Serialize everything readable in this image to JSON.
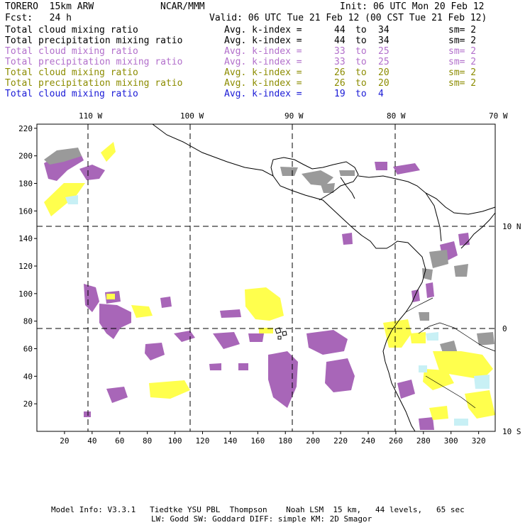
{
  "header": {
    "model": "TORERO  15km ARW",
    "org": "NCAR/MMM",
    "init": "Init: 06 UTC Mon 20 Feb 12",
    "fcst": "Fcst:   24 h",
    "valid": "Valid: 06 UTC Tue 21 Feb 12 (00 CST Tue 21 Feb 12)"
  },
  "legend": [
    {
      "field": "Total cloud mixing ratio",
      "kindex_label": "Avg. k-index =",
      "from": "44",
      "to": "to",
      "to_val": "34",
      "sm": "sm= 2",
      "color": "#000000"
    },
    {
      "field": "Total precipitation mixing ratio",
      "kindex_label": "Avg. k-index =",
      "from": "44",
      "to": "to",
      "to_val": "34",
      "sm": "sm= 2",
      "color": "#000000"
    },
    {
      "field": "Total cloud mixing ratio",
      "kindex_label": "Avg. k-index =",
      "from": "33",
      "to": "to",
      "to_val": "25",
      "sm": "sm= 2",
      "color": "#b26fcb"
    },
    {
      "field": "Total precipitation mixing ratio",
      "kindex_label": "Avg. k-index =",
      "from": "33",
      "to": "to",
      "to_val": "25",
      "sm": "sm= 2",
      "color": "#b26fcb"
    },
    {
      "field": "Total cloud mixing ratio",
      "kindex_label": "Avg. k-index =",
      "from": "26",
      "to": "to",
      "to_val": "20",
      "sm": "sm= 2",
      "color": "#8c8c00"
    },
    {
      "field": "Total precipitation mixing ratio",
      "kindex_label": "Avg. k-index =",
      "from": "26",
      "to": "to",
      "to_val": "20",
      "sm": "sm= 2",
      "color": "#8c8c00"
    },
    {
      "field": "Total cloud mixing ratio",
      "kindex_label": "Avg. k-index =",
      "from": "19",
      "to": "to",
      "to_val": "4",
      "sm": "",
      "color": "#1a1ad6"
    }
  ],
  "map": {
    "lon_labels": [
      "110 W",
      "100 W",
      "90 W",
      "80 W",
      "70 W"
    ],
    "lat_labels": [
      "10 N",
      "0",
      "10 S"
    ],
    "x_ticks": [
      "20",
      "40",
      "60",
      "80",
      "100",
      "120",
      "140",
      "160",
      "180",
      "200",
      "220",
      "240",
      "260",
      "280",
      "300",
      "320"
    ],
    "y_ticks": [
      "220",
      "200",
      "180",
      "160",
      "140",
      "120",
      "100",
      "80",
      "60",
      "40",
      "20"
    ]
  },
  "footer": {
    "line1": "Model Info: V3.3.1   Tiedtke YSU PBL  Thompson    Noah LSM  15 km,   44 levels,   65 sec",
    "line2": "LW: Godd SW: Goddard DIFF: simple KM: 2D Smagor"
  }
}
